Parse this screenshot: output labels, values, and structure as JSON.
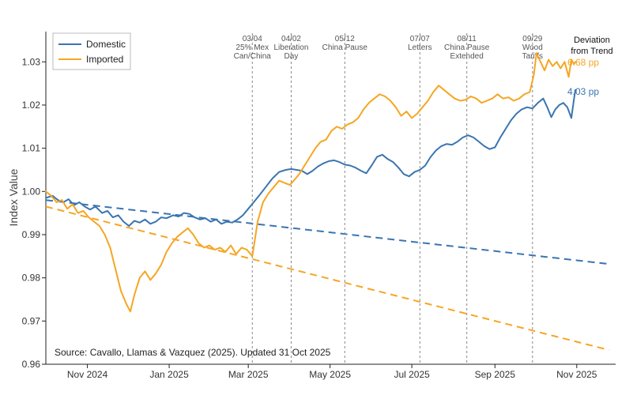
{
  "chart_data": {
    "type": "line",
    "ylabel": "Index Value",
    "ylim": [
      0.96,
      1.037
    ],
    "y_ticks": [
      "0.96",
      "0.97",
      "0.98",
      "0.99",
      "1.00",
      "1.01",
      "1.02",
      "1.03"
    ],
    "x_ticks": [
      {
        "label": "Nov 2024",
        "date": "2024-11-01"
      },
      {
        "label": "Jan 2025",
        "date": "2025-01-01"
      },
      {
        "label": "Mar 2025",
        "date": "2025-03-01"
      },
      {
        "label": "May 2025",
        "date": "2025-05-01"
      },
      {
        "label": "Jul 2025",
        "date": "2025-07-01"
      },
      {
        "label": "Sep 2025",
        "date": "2025-09-01"
      },
      {
        "label": "Nov 2025",
        "date": "2025-11-01"
      }
    ],
    "xlim": [
      "2024-10-01",
      "2025-11-30"
    ],
    "grid": false,
    "legend_position": "top-left",
    "colors": {
      "domestic": "#3a75b0",
      "imported": "#f5a623"
    },
    "series": [
      {
        "name": "Domestic",
        "color": "#3a75b0",
        "points": [
          [
            "2024-10-01",
            0.9985
          ],
          [
            "2024-10-06",
            0.999
          ],
          [
            "2024-10-10",
            0.998
          ],
          [
            "2024-10-14",
            0.9975
          ],
          [
            "2024-10-18",
            0.9982
          ],
          [
            "2024-10-22",
            0.9968
          ],
          [
            "2024-10-26",
            0.9975
          ],
          [
            "2024-10-30",
            0.9965
          ],
          [
            "2024-11-03",
            0.9958
          ],
          [
            "2024-11-07",
            0.9965
          ],
          [
            "2024-11-12",
            0.995
          ],
          [
            "2024-11-16",
            0.9955
          ],
          [
            "2024-11-20",
            0.994
          ],
          [
            "2024-11-24",
            0.9945
          ],
          [
            "2024-11-28",
            0.993
          ],
          [
            "2024-12-02",
            0.992
          ],
          [
            "2024-12-06",
            0.9932
          ],
          [
            "2024-12-10",
            0.9928
          ],
          [
            "2024-12-14",
            0.9935
          ],
          [
            "2024-12-18",
            0.9925
          ],
          [
            "2024-12-22",
            0.993
          ],
          [
            "2024-12-26",
            0.994
          ],
          [
            "2024-12-30",
            0.9938
          ],
          [
            "2025-01-04",
            0.9945
          ],
          [
            "2025-01-08",
            0.9942
          ],
          [
            "2025-01-12",
            0.995
          ],
          [
            "2025-01-16",
            0.9948
          ],
          [
            "2025-01-20",
            0.994
          ],
          [
            "2025-01-24",
            0.9935
          ],
          [
            "2025-01-28",
            0.9938
          ],
          [
            "2025-02-01",
            0.993
          ],
          [
            "2025-02-05",
            0.9935
          ],
          [
            "2025-02-09",
            0.9925
          ],
          [
            "2025-02-13",
            0.993
          ],
          [
            "2025-02-17",
            0.9928
          ],
          [
            "2025-02-21",
            0.9935
          ],
          [
            "2025-02-25",
            0.9945
          ],
          [
            "2025-03-01",
            0.996
          ],
          [
            "2025-03-05",
            0.9975
          ],
          [
            "2025-03-09",
            0.999
          ],
          [
            "2025-03-14",
            1.001
          ],
          [
            "2025-03-19",
            1.003
          ],
          [
            "2025-03-24",
            1.0045
          ],
          [
            "2025-03-29",
            1.005
          ],
          [
            "2025-04-02",
            1.0052
          ],
          [
            "2025-04-06",
            1.005
          ],
          [
            "2025-04-10",
            1.0048
          ],
          [
            "2025-04-14",
            1.004
          ],
          [
            "2025-04-18",
            1.0048
          ],
          [
            "2025-04-22",
            1.0058
          ],
          [
            "2025-04-26",
            1.0065
          ],
          [
            "2025-04-30",
            1.007
          ],
          [
            "2025-05-04",
            1.0072
          ],
          [
            "2025-05-08",
            1.0068
          ],
          [
            "2025-05-12",
            1.0062
          ],
          [
            "2025-05-16",
            1.006
          ],
          [
            "2025-05-20",
            1.0055
          ],
          [
            "2025-05-24",
            1.0048
          ],
          [
            "2025-05-28",
            1.0042
          ],
          [
            "2025-06-01",
            1.006
          ],
          [
            "2025-06-05",
            1.008
          ],
          [
            "2025-06-09",
            1.0085
          ],
          [
            "2025-06-13",
            1.0075
          ],
          [
            "2025-06-17",
            1.0068
          ],
          [
            "2025-06-21",
            1.0055
          ],
          [
            "2025-06-25",
            1.004
          ],
          [
            "2025-06-29",
            1.0035
          ],
          [
            "2025-07-03",
            1.0045
          ],
          [
            "2025-07-07",
            1.005
          ],
          [
            "2025-07-11",
            1.006
          ],
          [
            "2025-07-15",
            1.008
          ],
          [
            "2025-07-19",
            1.0095
          ],
          [
            "2025-07-23",
            1.0105
          ],
          [
            "2025-07-27",
            1.011
          ],
          [
            "2025-07-31",
            1.0108
          ],
          [
            "2025-08-04",
            1.0115
          ],
          [
            "2025-08-08",
            1.0125
          ],
          [
            "2025-08-12",
            1.013
          ],
          [
            "2025-08-16",
            1.0125
          ],
          [
            "2025-08-20",
            1.0115
          ],
          [
            "2025-08-24",
            1.0105
          ],
          [
            "2025-08-28",
            1.0098
          ],
          [
            "2025-09-01",
            1.0102
          ],
          [
            "2025-09-05",
            1.0125
          ],
          [
            "2025-09-09",
            1.0145
          ],
          [
            "2025-09-13",
            1.0165
          ],
          [
            "2025-09-17",
            1.018
          ],
          [
            "2025-09-21",
            1.019
          ],
          [
            "2025-09-25",
            1.0195
          ],
          [
            "2025-09-29",
            1.0192
          ],
          [
            "2025-10-03",
            1.0205
          ],
          [
            "2025-10-07",
            1.0215
          ],
          [
            "2025-10-10",
            1.0195
          ],
          [
            "2025-10-13",
            1.0172
          ],
          [
            "2025-10-16",
            1.019
          ],
          [
            "2025-10-19",
            1.02
          ],
          [
            "2025-10-22",
            1.0205
          ],
          [
            "2025-10-25",
            1.0195
          ],
          [
            "2025-10-28",
            1.017
          ],
          [
            "2025-10-30",
            1.0215
          ],
          [
            "2025-10-31",
            1.0235
          ]
        ]
      },
      {
        "name": "Imported",
        "color": "#f5a623",
        "points": [
          [
            "2024-10-01",
            1.0
          ],
          [
            "2024-10-05",
            0.999
          ],
          [
            "2024-10-09",
            0.9975
          ],
          [
            "2024-10-13",
            0.998
          ],
          [
            "2024-10-17",
            0.996
          ],
          [
            "2024-10-21",
            0.997
          ],
          [
            "2024-10-25",
            0.995
          ],
          [
            "2024-10-29",
            0.9955
          ],
          [
            "2024-11-02",
            0.994
          ],
          [
            "2024-11-06",
            0.993
          ],
          [
            "2024-11-10",
            0.992
          ],
          [
            "2024-11-14",
            0.99
          ],
          [
            "2024-11-18",
            0.987
          ],
          [
            "2024-11-22",
            0.982
          ],
          [
            "2024-11-26",
            0.977
          ],
          [
            "2024-11-30",
            0.974
          ],
          [
            "2024-12-03",
            0.9722
          ],
          [
            "2024-12-06",
            0.976
          ],
          [
            "2024-12-10",
            0.98
          ],
          [
            "2024-12-14",
            0.9815
          ],
          [
            "2024-12-18",
            0.9795
          ],
          [
            "2024-12-22",
            0.981
          ],
          [
            "2024-12-26",
            0.983
          ],
          [
            "2024-12-30",
            0.986
          ],
          [
            "2025-01-03",
            0.988
          ],
          [
            "2025-01-07",
            0.9895
          ],
          [
            "2025-01-11",
            0.9905
          ],
          [
            "2025-01-15",
            0.9915
          ],
          [
            "2025-01-19",
            0.99
          ],
          [
            "2025-01-23",
            0.988
          ],
          [
            "2025-01-27",
            0.987
          ],
          [
            "2025-01-31",
            0.9875
          ],
          [
            "2025-02-04",
            0.9865
          ],
          [
            "2025-02-08",
            0.987
          ],
          [
            "2025-02-12",
            0.986
          ],
          [
            "2025-02-16",
            0.9875
          ],
          [
            "2025-02-20",
            0.9855
          ],
          [
            "2025-02-24",
            0.987
          ],
          [
            "2025-02-28",
            0.9865
          ],
          [
            "2025-03-04",
            0.985
          ],
          [
            "2025-03-08",
            0.993
          ],
          [
            "2025-03-12",
            0.9975
          ],
          [
            "2025-03-16",
            0.9995
          ],
          [
            "2025-03-20",
            1.001
          ],
          [
            "2025-03-24",
            1.0025
          ],
          [
            "2025-03-28",
            1.002
          ],
          [
            "2025-04-01",
            1.0015
          ],
          [
            "2025-04-04",
            1.0025
          ],
          [
            "2025-04-08",
            1.004
          ],
          [
            "2025-04-12",
            1.006
          ],
          [
            "2025-04-16",
            1.008
          ],
          [
            "2025-04-20",
            1.01
          ],
          [
            "2025-04-24",
            1.0115
          ],
          [
            "2025-04-28",
            1.012
          ],
          [
            "2025-05-02",
            1.014
          ],
          [
            "2025-05-06",
            1.015
          ],
          [
            "2025-05-10",
            1.0145
          ],
          [
            "2025-05-14",
            1.0155
          ],
          [
            "2025-05-18",
            1.016
          ],
          [
            "2025-05-22",
            1.017
          ],
          [
            "2025-05-26",
            1.019
          ],
          [
            "2025-05-30",
            1.0205
          ],
          [
            "2025-06-03",
            1.0215
          ],
          [
            "2025-06-07",
            1.0225
          ],
          [
            "2025-06-11",
            1.022
          ],
          [
            "2025-06-15",
            1.021
          ],
          [
            "2025-06-19",
            1.0195
          ],
          [
            "2025-06-23",
            1.0175
          ],
          [
            "2025-06-27",
            1.0185
          ],
          [
            "2025-07-01",
            1.017
          ],
          [
            "2025-07-05",
            1.018
          ],
          [
            "2025-07-09",
            1.0195
          ],
          [
            "2025-07-13",
            1.021
          ],
          [
            "2025-07-17",
            1.023
          ],
          [
            "2025-07-21",
            1.0245
          ],
          [
            "2025-07-25",
            1.0235
          ],
          [
            "2025-07-29",
            1.0225
          ],
          [
            "2025-08-02",
            1.0215
          ],
          [
            "2025-08-06",
            1.021
          ],
          [
            "2025-08-10",
            1.0212
          ],
          [
            "2025-08-14",
            1.022
          ],
          [
            "2025-08-18",
            1.0215
          ],
          [
            "2025-08-22",
            1.0205
          ],
          [
            "2025-08-26",
            1.021
          ],
          [
            "2025-08-30",
            1.0215
          ],
          [
            "2025-09-03",
            1.0225
          ],
          [
            "2025-09-07",
            1.0215
          ],
          [
            "2025-09-11",
            1.0218
          ],
          [
            "2025-09-15",
            1.021
          ],
          [
            "2025-09-19",
            1.0215
          ],
          [
            "2025-09-23",
            1.0225
          ],
          [
            "2025-09-27",
            1.023
          ],
          [
            "2025-09-30",
            1.027
          ],
          [
            "2025-10-02",
            1.032
          ],
          [
            "2025-10-05",
            1.03
          ],
          [
            "2025-10-08",
            1.028
          ],
          [
            "2025-10-11",
            1.0305
          ],
          [
            "2025-10-14",
            1.029
          ],
          [
            "2025-10-17",
            1.03
          ],
          [
            "2025-10-20",
            1.0285
          ],
          [
            "2025-10-23",
            1.03
          ],
          [
            "2025-10-26",
            1.0265
          ],
          [
            "2025-10-28",
            1.0305
          ],
          [
            "2025-10-30",
            1.0295
          ],
          [
            "2025-10-31",
            1.03
          ]
        ]
      }
    ],
    "trends": [
      {
        "series": "Domestic",
        "color": "#3a75b0",
        "points": [
          [
            "2024-10-01",
            0.998
          ],
          [
            "2025-11-25",
            0.9832
          ]
        ]
      },
      {
        "series": "Imported",
        "color": "#f5a623",
        "points": [
          [
            "2024-10-01",
            0.9965
          ],
          [
            "2025-11-25",
            0.9633
          ]
        ]
      }
    ],
    "annotations": [
      {
        "date": "2025-03-04",
        "lines": [
          "03/04",
          "25% Mex",
          "Can/China"
        ]
      },
      {
        "date": "2025-04-02",
        "lines": [
          "04/02",
          "Liberation",
          "Day"
        ]
      },
      {
        "date": "2025-05-12",
        "lines": [
          "05/12",
          "China Pause"
        ]
      },
      {
        "date": "2025-07-07",
        "lines": [
          "07/07",
          "Letters"
        ]
      },
      {
        "date": "2025-08-11",
        "lines": [
          "08/11",
          "China Pause",
          "Extended"
        ]
      },
      {
        "date": "2025-09-29",
        "lines": [
          "09/29",
          "Wood",
          "Tariffs"
        ]
      }
    ],
    "deviation": {
      "title_lines": [
        "Deviation",
        "from Trend"
      ],
      "imported": "6.68 pp",
      "domestic": "4.03 pp"
    },
    "source_note": "Source: Cavallo, Llamas & Vazquez (2025). Updated 31 Oct 2025"
  }
}
